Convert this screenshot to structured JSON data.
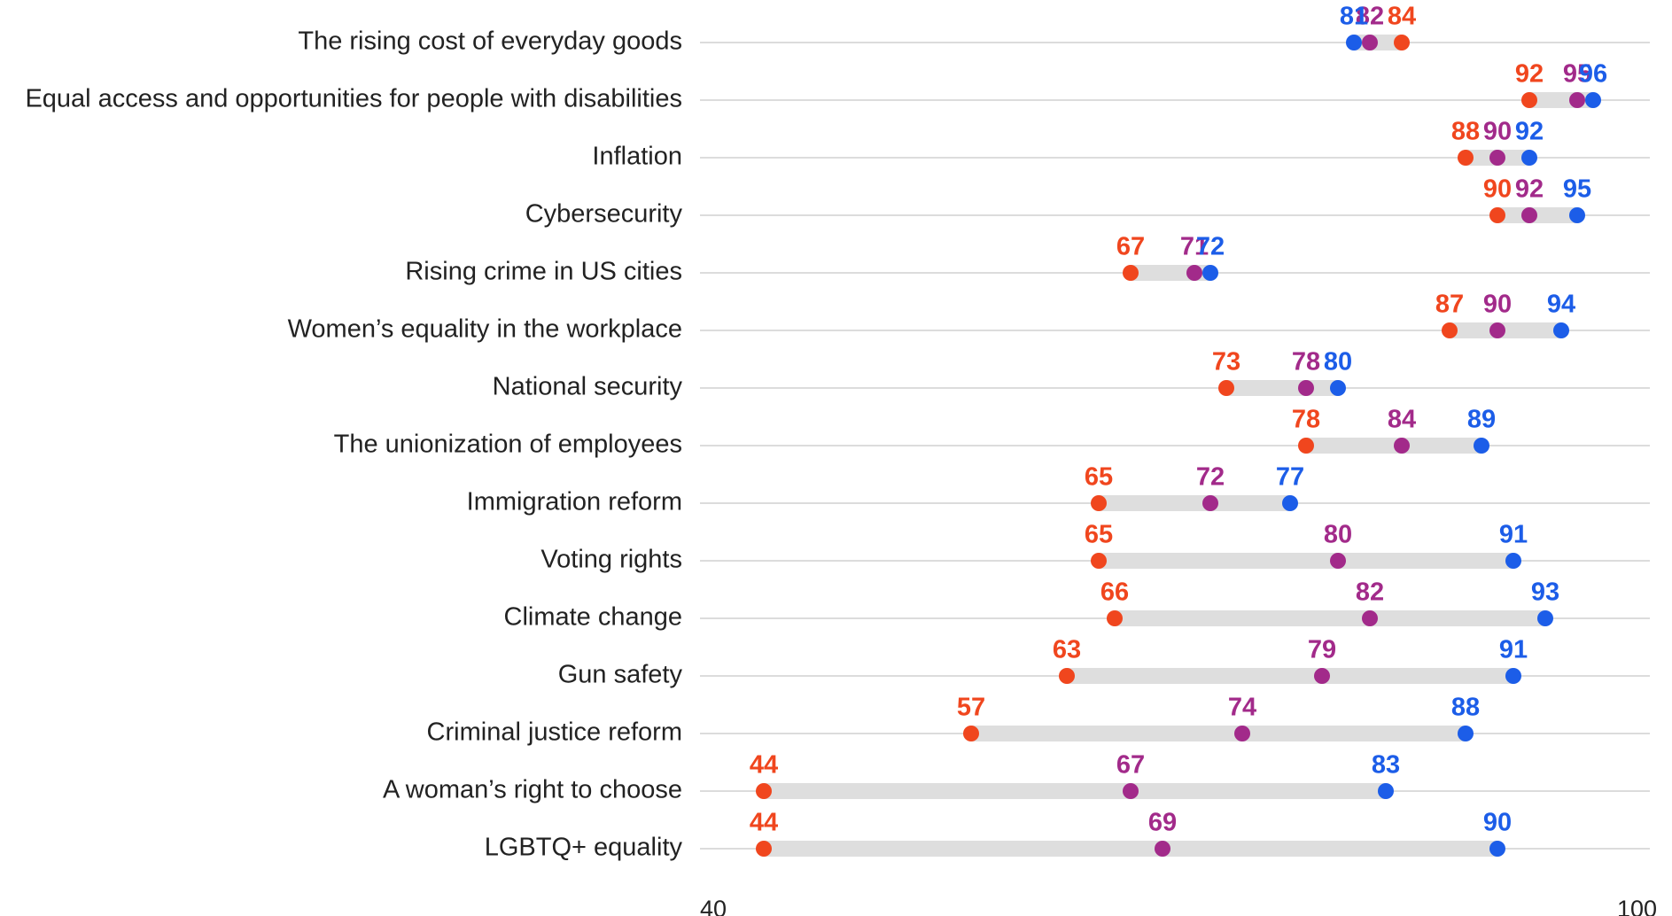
{
  "chart_data": {
    "type": "dumbbell",
    "categories": [
      "The rising cost of everyday goods",
      "Equal access and opportunities for people with disabilities",
      "Inflation",
      "Cybersecurity",
      "Rising crime in US cities",
      "Women’s equality in the workplace",
      "National security",
      "The unionization of employees",
      "Immigration reform",
      "Voting rights",
      "Climate change",
      "Gun safety",
      "Criminal justice reform",
      "A woman’s right to choose",
      "LGBTQ+ equality"
    ],
    "series": [
      {
        "color": "#f0461e",
        "values": [
          84,
          92,
          88,
          90,
          67,
          87,
          73,
          78,
          65,
          65,
          66,
          63,
          57,
          44,
          44
        ]
      },
      {
        "color": "#a22a8a",
        "values": [
          82,
          95,
          90,
          92,
          71,
          90,
          78,
          84,
          72,
          80,
          82,
          79,
          74,
          67,
          69
        ]
      },
      {
        "color": "#1c5de8",
        "values": [
          81,
          96,
          92,
          95,
          72,
          94,
          80,
          89,
          77,
          91,
          93,
          91,
          88,
          83,
          90
        ]
      }
    ],
    "xlim": [
      40,
      100
    ],
    "xticks": [
      40,
      100
    ]
  }
}
